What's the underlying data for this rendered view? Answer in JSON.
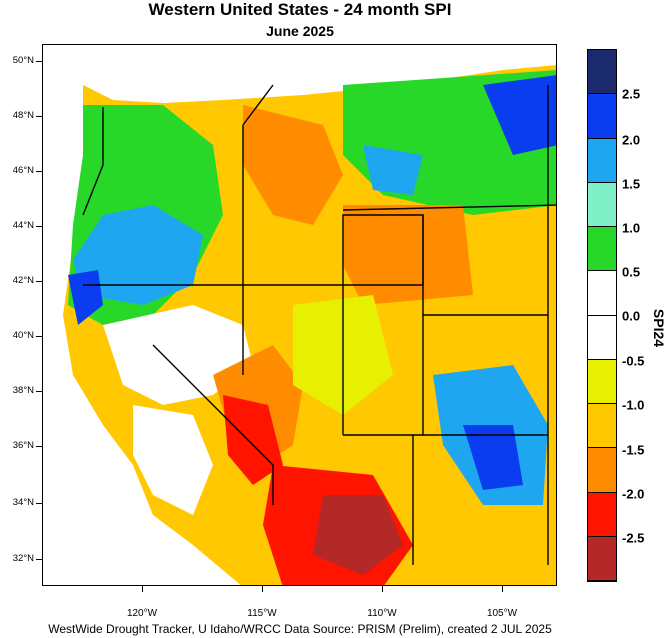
{
  "title": "Western United States - 24 month SPI",
  "subtitle": "June 2025",
  "legend": {
    "title": "SPI24",
    "tick_labels": [
      "2.5",
      "2.0",
      "1.5",
      "1.0",
      "0.5",
      "0.0",
      "-0.5",
      "-1.0",
      "-1.5",
      "-2.0",
      "-2.5"
    ],
    "colors": [
      "#1a2a6c",
      "#0a3cf0",
      "#1ea6f0",
      "#80f0c8",
      "#28d828",
      "#ffffff",
      "#ffffff",
      "#e6f000",
      "#ffc800",
      "#ff8c00",
      "#ff1400",
      "#b42828"
    ]
  },
  "axes": {
    "lat_labels": [
      "50°N",
      "48°N",
      "46°N",
      "44°N",
      "42°N",
      "40°N",
      "38°N",
      "36°N",
      "34°N",
      "32°N"
    ],
    "lon_labels": [
      "120°W",
      "115°W",
      "110°W",
      "105°W"
    ]
  },
  "footer": "WestWide Drought Tracker, U Idaho/WRCC Data Source: PRISM (Prelim), created  2 JUL 2025"
}
